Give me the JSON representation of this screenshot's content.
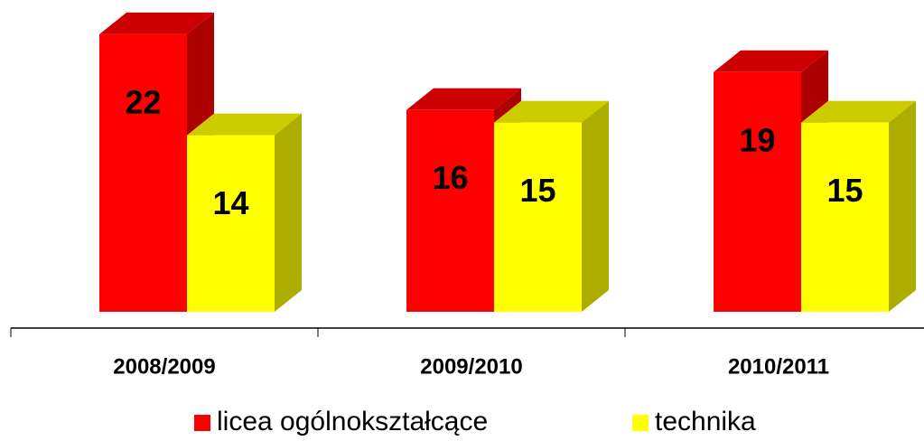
{
  "chart_data": {
    "type": "bar3d",
    "categories": [
      "2008/2009",
      "2009/2010",
      "2010/2011"
    ],
    "series": [
      {
        "name": "licea ogólnokształcące",
        "color": "#ff0000",
        "values": [
          22,
          16,
          19
        ]
      },
      {
        "name": "technika",
        "color": "#ffff00",
        "values": [
          14,
          15,
          15
        ]
      }
    ],
    "ylim": [
      0,
      24
    ]
  }
}
